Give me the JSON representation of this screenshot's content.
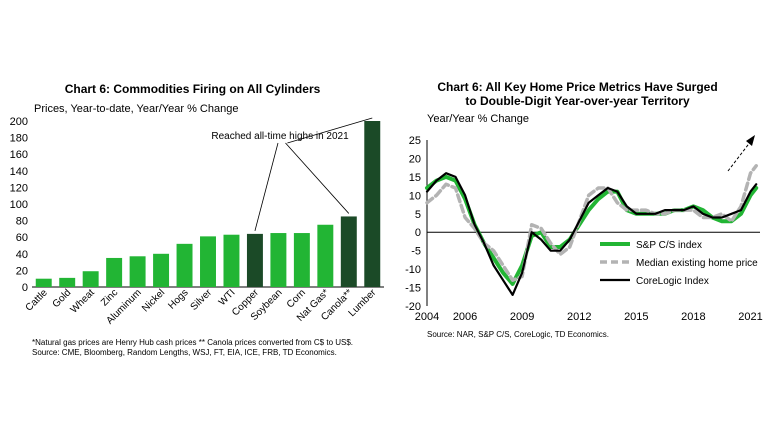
{
  "chart_data": [
    {
      "type": "bar",
      "title": "Chart 6: Commodities Firing on All Cylinders",
      "ylabel": "Prices, Year-to-date, Year/Year % Change",
      "ylim": [
        0,
        200
      ],
      "yticks": [
        0,
        20,
        40,
        60,
        80,
        100,
        120,
        140,
        160,
        180,
        200
      ],
      "categories": [
        "Cattle",
        "Gold",
        "Wheat",
        "Zinc",
        "Aluminum",
        "Nickel",
        "Hogs",
        "Silver",
        "WTI",
        "Copper",
        "Soybean",
        "Corn",
        "Nat Gas*",
        "Canola**",
        "Lumber"
      ],
      "values": [
        10,
        11,
        19,
        35,
        37,
        40,
        52,
        61,
        63,
        64,
        65,
        65,
        75,
        85,
        200
      ],
      "highlighted": [
        "Copper",
        "Canola**",
        "Lumber"
      ],
      "colors": {
        "regular": "#22b534",
        "highlight": "#1b4a27"
      },
      "annotation": "Reached all-time highs in 2021",
      "footnote": "*Natural gas prices are Henry Hub cash prices ** Canola prices converted from C$ to US$.",
      "source": "Source: CME, Bloomberg, Random Lengths, WSJ, FT, EIA, ICE, FRB, TD Economics."
    },
    {
      "type": "line",
      "title": "Chart 6: All Key Home Price Metrics Have Surged to Double-Digit Year-over-year Territory",
      "title_lines": [
        "Chart 6: All Key Home Price Metrics Have Surged",
        "to Double-Digit Year-over-year Territory"
      ],
      "ylabel": "Year/Year % Change",
      "ylim": [
        -20,
        25
      ],
      "yticks": [
        -20,
        -15,
        -10,
        -5,
        0,
        5,
        10,
        15,
        20,
        25
      ],
      "xlim": [
        2004,
        2021.5
      ],
      "xticks": [
        2004,
        2006,
        2009,
        2012,
        2015,
        2018,
        2021
      ],
      "series": [
        {
          "name": "S&P C/S index",
          "color": "#22b534",
          "x": [
            2004,
            2004.5,
            2005,
            2005.5,
            2006,
            2006.5,
            2007,
            2007.5,
            2008,
            2008.5,
            2009,
            2009.5,
            2010,
            2010.5,
            2011,
            2011.5,
            2012,
            2012.5,
            2013,
            2013.5,
            2014,
            2014.5,
            2015,
            2015.5,
            2016,
            2016.5,
            2017,
            2017.5,
            2018,
            2018.5,
            2019,
            2019.5,
            2020,
            2020.5,
            2021,
            2021.3
          ],
          "values": [
            12,
            14,
            15,
            14,
            9,
            2,
            -3,
            -7,
            -11,
            -14,
            -9,
            -1,
            0,
            -4,
            -4,
            -2,
            2,
            6,
            9,
            11,
            11,
            6,
            5,
            5,
            5,
            5,
            6,
            6,
            7,
            6,
            4,
            3,
            3,
            5,
            10,
            12
          ]
        },
        {
          "name": "Median existing home price",
          "color": "#b3b3b3",
          "x": [
            2004,
            2004.5,
            2005,
            2005.5,
            2006,
            2006.5,
            2007,
            2007.5,
            2008,
            2008.5,
            2009,
            2009.5,
            2010,
            2010.5,
            2011,
            2011.5,
            2012,
            2012.5,
            2013,
            2013.5,
            2014,
            2014.5,
            2015,
            2015.5,
            2016,
            2016.5,
            2017,
            2017.5,
            2018,
            2018.5,
            2019,
            2019.5,
            2020,
            2020.5,
            2021,
            2021.3
          ],
          "values": [
            8,
            10,
            13,
            12,
            4,
            1,
            -3,
            -5,
            -9,
            -13,
            -12,
            2,
            1,
            -3,
            -6,
            -4,
            3,
            10,
            12,
            12,
            8,
            6,
            6,
            6,
            5,
            5,
            6,
            6,
            6,
            4,
            4,
            5,
            3,
            7,
            16,
            18
          ]
        },
        {
          "name": "CoreLogic Index",
          "color": "#000000",
          "x": [
            2004,
            2004.5,
            2005,
            2005.5,
            2006,
            2006.5,
            2007,
            2007.5,
            2008,
            2008.5,
            2009,
            2009.5,
            2010,
            2010.5,
            2011,
            2011.5,
            2012,
            2012.5,
            2013,
            2013.5,
            2014,
            2014.5,
            2015,
            2015.5,
            2016,
            2016.5,
            2017,
            2017.5,
            2018,
            2018.5,
            2019,
            2019.5,
            2020,
            2020.5,
            2021,
            2021.3
          ],
          "values": [
            11,
            14,
            16,
            15,
            10,
            2,
            -3,
            -9,
            -13,
            -17,
            -11,
            0,
            -2,
            -5,
            -5,
            -2,
            3,
            8,
            10,
            12,
            11,
            7,
            5,
            5,
            5,
            6,
            6,
            6,
            7,
            5,
            4,
            4,
            5,
            6,
            11,
            13
          ]
        }
      ],
      "source": "Source: NAR, S&P C/S, CoreLogic, TD Economics."
    }
  ]
}
